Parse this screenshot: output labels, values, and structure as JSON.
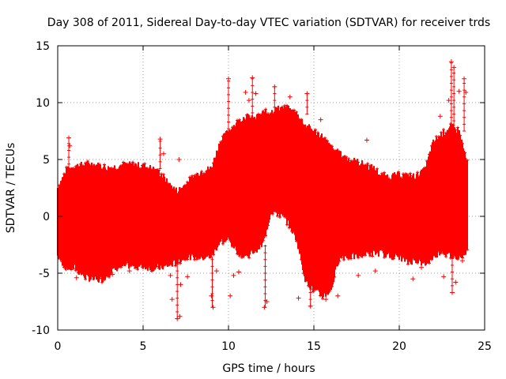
{
  "chart_data": {
    "type": "scatter",
    "title": "Day 308 of 2011, Sidereal Day-to-day VTEC variation (SDTVAR) for receiver trds",
    "xlabel": "GPS time / hours",
    "ylabel": "SDTVAR / TECUs",
    "xlim": [
      0,
      25
    ],
    "ylim": [
      -10,
      15
    ],
    "xticks": [
      0,
      5,
      10,
      15,
      20,
      25
    ],
    "yticks": [
      -10,
      -5,
      0,
      5,
      10,
      15
    ],
    "grid": true,
    "marker": "+",
    "series_color": "#ff0000",
    "x_data_range": [
      0,
      24
    ],
    "envelope": {
      "hours": [
        0,
        0.5,
        1,
        1.5,
        2,
        2.5,
        3,
        3.5,
        4,
        4.5,
        5,
        5.5,
        6,
        6.5,
        7,
        7.5,
        8,
        8.5,
        9,
        9.5,
        10,
        10.5,
        11,
        11.5,
        12,
        12.5,
        13,
        13.5,
        14,
        14.5,
        15,
        15.5,
        16,
        16.5,
        17,
        17.5,
        18,
        18.5,
        19,
        19.5,
        20,
        20.5,
        21,
        21.5,
        22,
        22.5,
        23,
        23.5,
        24
      ],
      "upper": [
        2.5,
        4.0,
        4.4,
        4.5,
        4.6,
        4.4,
        4.2,
        4.4,
        4.5,
        4.5,
        4.4,
        4.2,
        3.8,
        2.8,
        2.2,
        2.8,
        3.5,
        4.0,
        4.2,
        6.5,
        7.5,
        8.2,
        8.8,
        8.5,
        9.0,
        9.2,
        9.5,
        9.4,
        9.0,
        8.0,
        7.5,
        7.0,
        6.0,
        5.5,
        5.0,
        4.8,
        4.5,
        4.2,
        3.5,
        3.5,
        3.6,
        3.5,
        3.5,
        4.0,
        6.5,
        7.2,
        7.8,
        7.5,
        4.5
      ],
      "lower": [
        -3.5,
        -4.5,
        -4.5,
        -5.2,
        -5.5,
        -5.6,
        -5.0,
        -4.5,
        -4.3,
        -4.3,
        -4.4,
        -4.5,
        -4.5,
        -4.3,
        -4.0,
        -3.5,
        -3.5,
        -3.6,
        -3.5,
        -2.2,
        -2.0,
        -3.0,
        -3.5,
        -3.0,
        -2.5,
        0.5,
        0.2,
        -0.5,
        -2.0,
        -5.5,
        -6.5,
        -7.0,
        -6.5,
        -3.5,
        -3.5,
        -3.5,
        -3.2,
        -3.2,
        -3.2,
        -3.5,
        -3.5,
        -4.0,
        -3.8,
        -4.2,
        -3.5,
        -3.0,
        -3.5,
        -3.5,
        -3.0
      ]
    },
    "outliers": [
      {
        "x": 0.3,
        "y": -4.0
      },
      {
        "x": 0.5,
        "y": -4.6
      },
      {
        "x": 0.65,
        "y": 6.9
      },
      {
        "x": 0.7,
        "y": 6.2
      },
      {
        "x": 1.1,
        "y": -5.4
      },
      {
        "x": 3.2,
        "y": -5.1
      },
      {
        "x": 4.2,
        "y": -4.8
      },
      {
        "x": 5.5,
        "y": -4.7
      },
      {
        "x": 6.0,
        "y": 6.8
      },
      {
        "x": 6.2,
        "y": 5.5
      },
      {
        "x": 6.6,
        "y": -5.2
      },
      {
        "x": 6.7,
        "y": -7.3
      },
      {
        "x": 7.0,
        "y": -9.0
      },
      {
        "x": 7.15,
        "y": -8.8
      },
      {
        "x": 7.2,
        "y": -6.0
      },
      {
        "x": 7.6,
        "y": -5.3
      },
      {
        "x": 7.1,
        "y": 5.0
      },
      {
        "x": 9.0,
        "y": -7.0
      },
      {
        "x": 9.1,
        "y": -8.0
      },
      {
        "x": 9.3,
        "y": -4.8
      },
      {
        "x": 10.0,
        "y": 12.1
      },
      {
        "x": 10.1,
        "y": -7.0
      },
      {
        "x": 10.3,
        "y": -5.2
      },
      {
        "x": 10.6,
        "y": -4.9
      },
      {
        "x": 11.0,
        "y": 10.9
      },
      {
        "x": 11.2,
        "y": 10.2
      },
      {
        "x": 11.4,
        "y": 12.2
      },
      {
        "x": 11.6,
        "y": 10.8
      },
      {
        "x": 12.1,
        "y": -8.0
      },
      {
        "x": 12.25,
        "y": -7.5
      },
      {
        "x": 12.7,
        "y": 11.4
      },
      {
        "x": 13.3,
        "y": 9.6
      },
      {
        "x": 13.6,
        "y": 10.5
      },
      {
        "x": 14.1,
        "y": -7.2
      },
      {
        "x": 14.6,
        "y": 10.8
      },
      {
        "x": 14.8,
        "y": -7.9
      },
      {
        "x": 15.4,
        "y": 8.5
      },
      {
        "x": 15.7,
        "y": -7.3
      },
      {
        "x": 16.4,
        "y": -7.0
      },
      {
        "x": 17.6,
        "y": -5.2
      },
      {
        "x": 18.1,
        "y": 6.7
      },
      {
        "x": 18.6,
        "y": -4.8
      },
      {
        "x": 20.8,
        "y": -5.5
      },
      {
        "x": 21.3,
        "y": -4.5
      },
      {
        "x": 22.4,
        "y": 8.8
      },
      {
        "x": 22.6,
        "y": -5.3
      },
      {
        "x": 22.9,
        "y": 10.2
      },
      {
        "x": 23.05,
        "y": 13.6
      },
      {
        "x": 23.2,
        "y": 13.1
      },
      {
        "x": 23.1,
        "y": -6.7
      },
      {
        "x": 23.3,
        "y": -5.8
      },
      {
        "x": 23.5,
        "y": 11.0
      },
      {
        "x": 23.8,
        "y": 12.1
      },
      {
        "x": 23.9,
        "y": 10.9
      },
      {
        "x": 23.7,
        "y": -3.9
      }
    ],
    "spikes": [
      {
        "x": 0.65,
        "hi": 6.9,
        "lo": 4.0
      },
      {
        "x": 6.0,
        "hi": 6.8,
        "lo": 4.2
      },
      {
        "x": 7.0,
        "hi": -4.0,
        "lo": -9.0
      },
      {
        "x": 9.05,
        "hi": -3.6,
        "lo": -8.0
      },
      {
        "x": 10.0,
        "hi": 12.1,
        "lo": 6.5
      },
      {
        "x": 11.4,
        "hi": 12.2,
        "lo": 8.5
      },
      {
        "x": 12.15,
        "hi": -2.5,
        "lo": -8.0
      },
      {
        "x": 12.7,
        "hi": 11.4,
        "lo": 9.0
      },
      {
        "x": 14.6,
        "hi": 10.8,
        "lo": 9.0
      },
      {
        "x": 14.8,
        "hi": -5.0,
        "lo": -7.9
      },
      {
        "x": 23.05,
        "hi": 13.6,
        "lo": 7.5
      },
      {
        "x": 23.2,
        "hi": 13.1,
        "lo": 7.8
      },
      {
        "x": 23.1,
        "hi": -3.5,
        "lo": -6.7
      },
      {
        "x": 23.8,
        "hi": 12.1,
        "lo": 7.5
      }
    ]
  }
}
